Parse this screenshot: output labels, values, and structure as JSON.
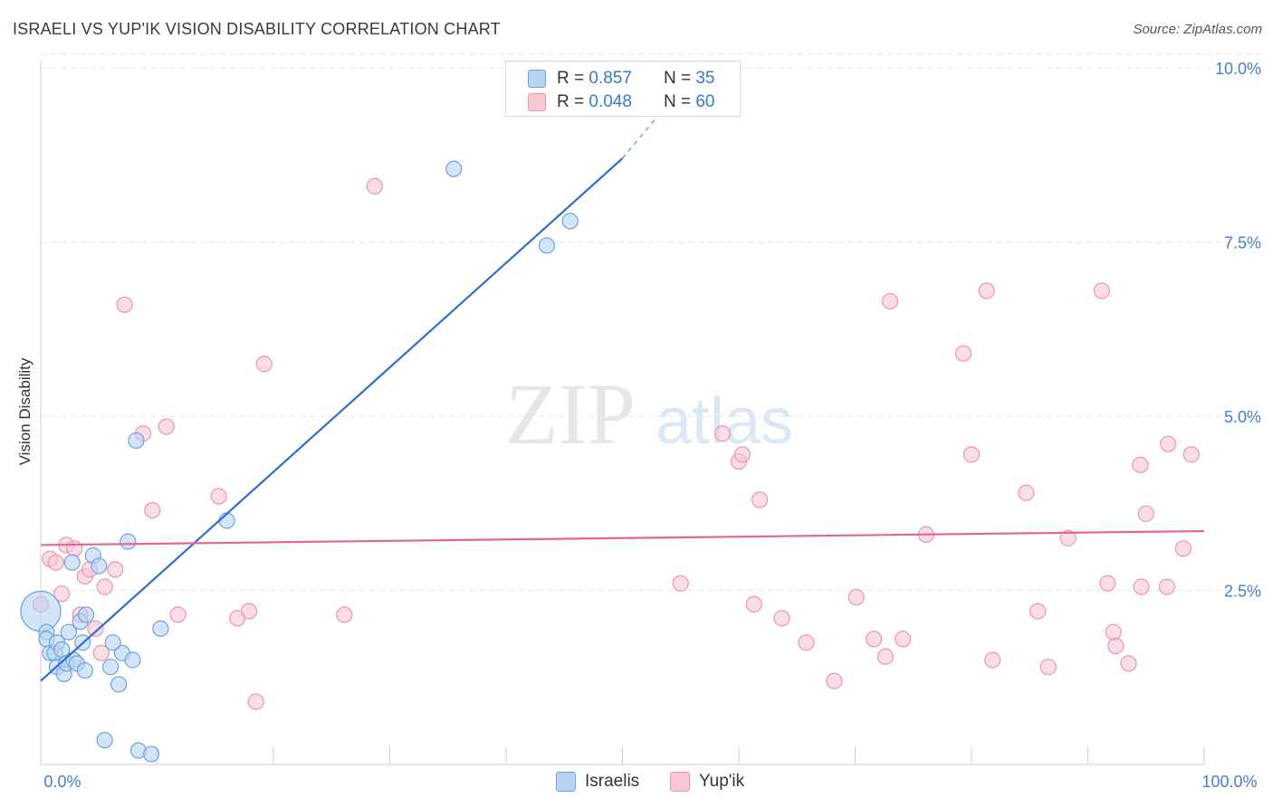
{
  "title": "ISRAELI VS YUP'IK VISION DISABILITY CORRELATION CHART",
  "source": "Source: ZipAtlas.com",
  "watermark": {
    "zip": "ZIP",
    "atlas": "atlas"
  },
  "colors": {
    "israelis_fill": "#b9d3f3",
    "israelis_stroke": "#6fa0df",
    "israelis_line": "#2c6fd0",
    "yupik_fill": "#f9c7d6",
    "yupik_stroke": "#ee93b0",
    "yupik_line": "#e2678e",
    "tick_label": "#4a7ec9",
    "grid": "#e4e4e4"
  },
  "stats": {
    "r_label": "R =",
    "n_label": "N =",
    "israelis": {
      "r": "0.857",
      "n": "35"
    },
    "yupik": {
      "r": "0.048",
      "n": "60"
    }
  },
  "legend": {
    "israelis": "Israelis",
    "yupik": "Yup'ik"
  },
  "chart_data": {
    "type": "scatter",
    "xlabel": "",
    "ylabel": "Vision Disability",
    "xlim": [
      0,
      100
    ],
    "ylim": [
      0,
      10
    ],
    "x_tick_labels": [
      {
        "value": 0,
        "label": "0.0%"
      },
      {
        "value": 100,
        "label": "100.0%"
      }
    ],
    "y_tick_labels": [
      {
        "value": 2.5,
        "label": "2.5%"
      },
      {
        "value": 5,
        "label": "5.0%"
      },
      {
        "value": 7.5,
        "label": "7.5%"
      },
      {
        "value": 10,
        "label": "10.0%"
      }
    ],
    "grid": "horizontal dashed",
    "legend_position": "bottom-center",
    "series": [
      {
        "name": "Israelis",
        "points": [
          [
            0,
            2.2,
            "large"
          ],
          [
            0.5,
            1.9
          ],
          [
            0.5,
            1.8
          ],
          [
            0.8,
            1.6
          ],
          [
            1.2,
            1.6
          ],
          [
            1.4,
            1.75
          ],
          [
            1.4,
            1.4
          ],
          [
            1.8,
            1.65
          ],
          [
            2.0,
            1.3
          ],
          [
            2.2,
            1.45
          ],
          [
            2.4,
            1.9
          ],
          [
            2.8,
            1.5
          ],
          [
            2.7,
            2.9
          ],
          [
            3.1,
            1.45
          ],
          [
            3.4,
            2.05
          ],
          [
            3.6,
            1.75
          ],
          [
            3.8,
            1.35
          ],
          [
            3.9,
            2.15
          ],
          [
            4.5,
            3.0
          ],
          [
            5.0,
            2.85
          ],
          [
            5.5,
            0.35
          ],
          [
            6.0,
            1.4
          ],
          [
            6.7,
            1.15
          ],
          [
            7.0,
            1.6
          ],
          [
            7.5,
            3.2
          ],
          [
            7.9,
            1.5
          ],
          [
            8.2,
            4.65
          ],
          [
            8.4,
            0.2
          ],
          [
            9.5,
            0.15
          ],
          [
            10.3,
            1.95
          ],
          [
            16,
            3.5
          ],
          [
            35.5,
            8.55
          ],
          [
            43.5,
            7.45
          ],
          [
            45.5,
            7.8
          ],
          [
            6.2,
            1.75
          ]
        ],
        "trend": {
          "x": [
            0,
            50
          ],
          "y": [
            1.2,
            8.7
          ],
          "dashed_to": [
            55,
            9.7
          ]
        }
      },
      {
        "name": "Yup'ik",
        "points": [
          [
            0,
            2.3
          ],
          [
            0.8,
            2.95
          ],
          [
            1.3,
            2.9
          ],
          [
            1.8,
            2.45
          ],
          [
            2.2,
            3.15
          ],
          [
            2.9,
            3.1
          ],
          [
            3.4,
            2.15
          ],
          [
            3.8,
            2.7
          ],
          [
            4.2,
            2.8
          ],
          [
            4.7,
            1.95
          ],
          [
            5.2,
            1.6
          ],
          [
            5.5,
            2.55
          ],
          [
            6.4,
            2.8
          ],
          [
            7.2,
            6.6
          ],
          [
            8.8,
            4.75
          ],
          [
            9.6,
            3.65
          ],
          [
            10.8,
            4.85
          ],
          [
            11.8,
            2.15
          ],
          [
            15.3,
            3.85
          ],
          [
            16.9,
            2.1
          ],
          [
            17.9,
            2.2
          ],
          [
            18.5,
            0.9
          ],
          [
            19.2,
            5.75
          ],
          [
            26.1,
            2.15
          ],
          [
            28.7,
            8.3
          ],
          [
            55.0,
            2.6
          ],
          [
            58.6,
            4.75
          ],
          [
            60.0,
            4.35
          ],
          [
            60.3,
            4.45
          ],
          [
            61.3,
            2.3
          ],
          [
            61.8,
            3.8
          ],
          [
            63.7,
            2.1
          ],
          [
            65.8,
            1.75
          ],
          [
            68.2,
            1.2
          ],
          [
            70.1,
            2.4
          ],
          [
            71.6,
            1.8
          ],
          [
            72.6,
            1.55
          ],
          [
            73.0,
            6.65
          ],
          [
            74.1,
            1.8
          ],
          [
            76.1,
            3.3
          ],
          [
            79.3,
            5.9
          ],
          [
            80.0,
            4.45
          ],
          [
            81.3,
            6.8
          ],
          [
            81.8,
            1.5
          ],
          [
            84.7,
            3.9
          ],
          [
            85.7,
            2.2
          ],
          [
            86.6,
            1.4
          ],
          [
            88.3,
            3.25
          ],
          [
            91.2,
            6.8
          ],
          [
            91.7,
            2.6
          ],
          [
            92.2,
            1.9
          ],
          [
            92.4,
            1.7
          ],
          [
            93.5,
            1.45
          ],
          [
            94.5,
            4.3
          ],
          [
            94.6,
            2.55
          ],
          [
            95.0,
            3.6
          ],
          [
            98.2,
            3.1
          ],
          [
            96.9,
            4.6
          ],
          [
            96.8,
            2.55
          ],
          [
            98.9,
            4.45
          ]
        ],
        "trend": {
          "x": [
            0,
            100
          ],
          "y": [
            3.15,
            3.35
          ]
        }
      }
    ]
  }
}
